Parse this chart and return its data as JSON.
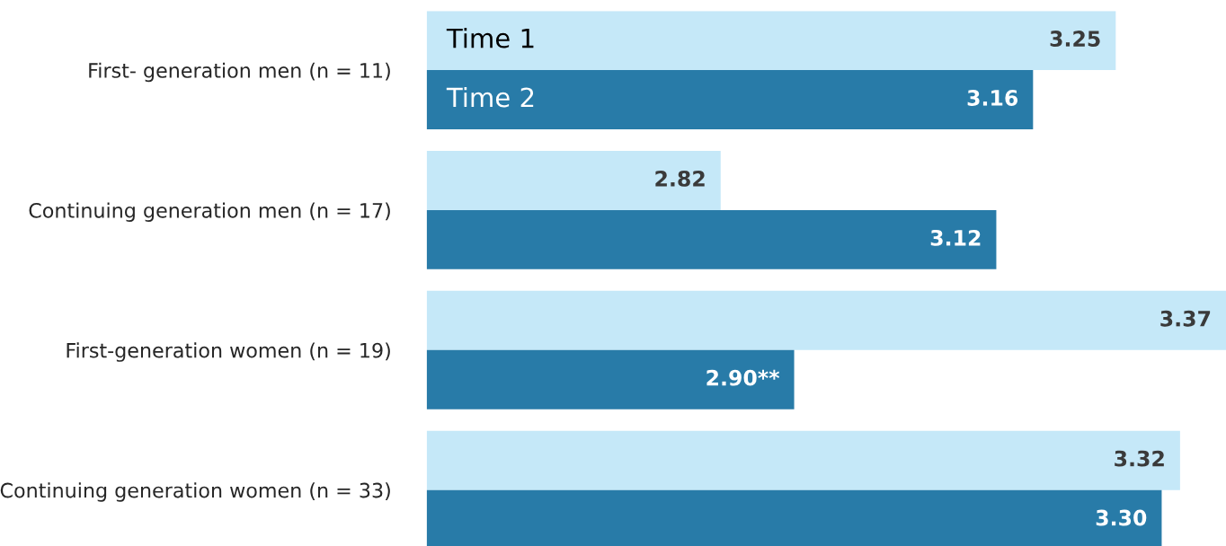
{
  "chart_data": {
    "type": "bar",
    "orientation": "horizontal",
    "categories": [
      "First- generation men (n = 11)",
      "Continuing generation men (n = 17)",
      "First-generation women (n = 19)",
      "Continuing generation women (n = 33)"
    ],
    "series": [
      {
        "name": "Time 1",
        "color": "#c5e8f8",
        "values": [
          3.25,
          2.82,
          3.37,
          3.32
        ],
        "value_labels": [
          "3.25",
          "2.82",
          "3.37",
          "3.32"
        ]
      },
      {
        "name": "Time 2",
        "color": "#287ba8",
        "values": [
          3.16,
          3.12,
          2.9,
          3.3
        ],
        "value_labels": [
          "3.16",
          "3.12",
          "2.90**",
          "3.30"
        ]
      }
    ],
    "xlim": [
      2.5,
      3.37
    ],
    "tick_labels": "y",
    "grid": false,
    "legend": false
  }
}
